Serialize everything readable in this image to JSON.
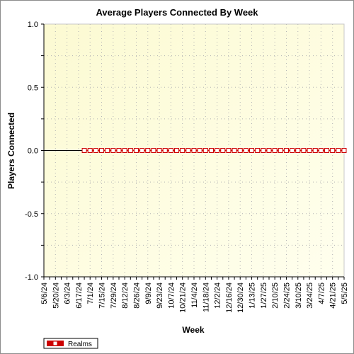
{
  "chart_data": {
    "type": "line",
    "title": "Average Players Connected By Week",
    "xlabel": "Week",
    "ylabel": "Players Connected",
    "ylim": [
      -1.0,
      1.0
    ],
    "yticks": [
      "1.0",
      "0.5",
      "0.0",
      "-0.5",
      "-1.0"
    ],
    "ytick_values": [
      1.0,
      0.5,
      0.0,
      -0.5,
      -1.0
    ],
    "grid": true,
    "legend_position": "bottom-left",
    "x_tick_labels": [
      "5/6/24",
      "5/20/24",
      "6/3/24",
      "6/17/24",
      "7/1/24",
      "7/15/24",
      "7/29/24",
      "8/12/24",
      "8/26/24",
      "9/9/24",
      "9/23/24",
      "10/7/24",
      "10/21/24",
      "11/4/24",
      "11/18/24",
      "12/2/24",
      "12/16/24",
      "12/30/24",
      "1/13/25",
      "1/27/25",
      "2/10/25",
      "2/24/25",
      "3/10/25",
      "3/24/25",
      "4/7/25",
      "4/21/25",
      "5/5/25"
    ],
    "x_week_count": 53,
    "series": [
      {
        "name": "Realms",
        "color": "#cc0000",
        "start_week_index": 7,
        "values": [
          0,
          0,
          0,
          0,
          0,
          0,
          0,
          0,
          0,
          0,
          0,
          0,
          0,
          0,
          0,
          0,
          0,
          0,
          0,
          0,
          0,
          0,
          0,
          0,
          0,
          0,
          0,
          0,
          0,
          0,
          0,
          0,
          0,
          0,
          0,
          0,
          0,
          0,
          0,
          0,
          0,
          0,
          0,
          0,
          0,
          0
        ]
      }
    ]
  }
}
